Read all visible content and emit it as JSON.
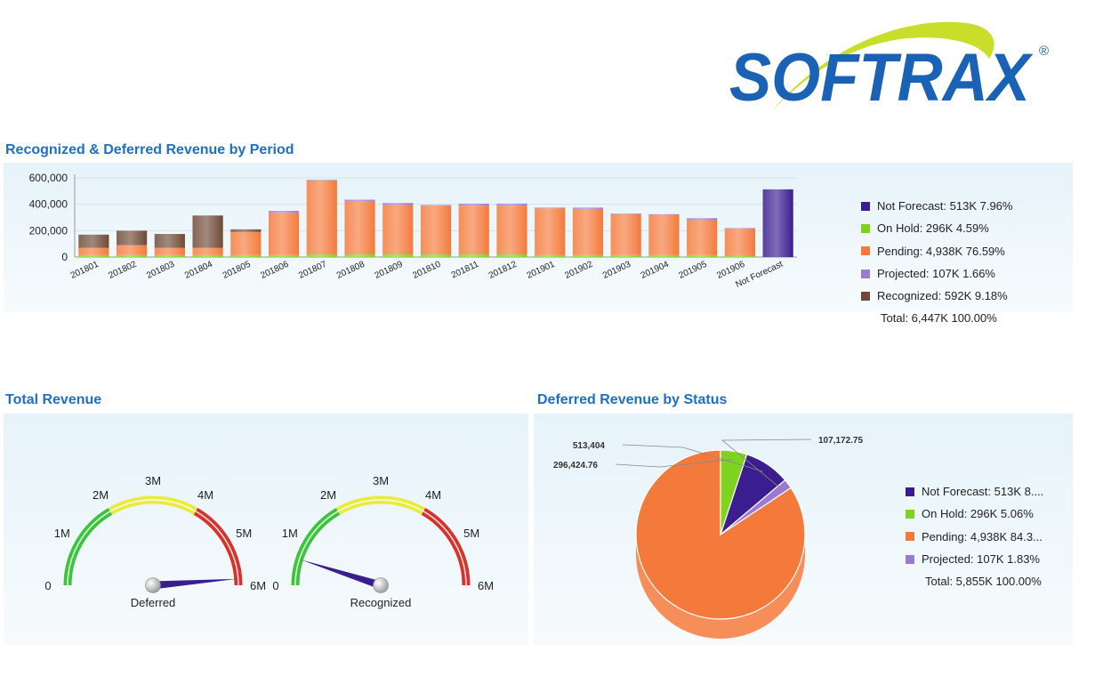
{
  "logo": {
    "text": "SOFTRAX",
    "registered": "®"
  },
  "colors": {
    "title": "#1f6fc5",
    "not_forecast": "#3b1d8f",
    "on_hold": "#7ed321",
    "pending": "#f47a3c",
    "projected": "#9b7ad0",
    "recognized": "#6e4a36"
  },
  "chart_data": [
    {
      "type": "bar",
      "title": "Recognized & Deferred Revenue by Period",
      "stacked": true,
      "categories": [
        "201801",
        "201802",
        "201803",
        "201804",
        "201805",
        "201806",
        "201807",
        "201808",
        "201809",
        "201810",
        "201811",
        "201812",
        "201901",
        "201902",
        "201903",
        "201904",
        "201905",
        "201906",
        "Not Forecast"
      ],
      "yticks": [
        "600,000",
        "400,000",
        "200,000",
        "0"
      ],
      "ylim": [
        0,
        620000
      ],
      "grid": true,
      "series": [
        {
          "name": "On Hold",
          "key": "on_hold",
          "values": [
            15000,
            15000,
            15000,
            15000,
            15000,
            15000,
            20000,
            20000,
            20000,
            20000,
            20000,
            20000,
            15000,
            15000,
            15000,
            15000,
            15000,
            10000,
            0
          ]
        },
        {
          "name": "Pending",
          "key": "pending",
          "values": [
            55000,
            75000,
            55000,
            55000,
            175000,
            320000,
            560000,
            400000,
            375000,
            370000,
            370000,
            370000,
            355000,
            350000,
            310000,
            305000,
            265000,
            205000,
            0
          ]
        },
        {
          "name": "Projected",
          "key": "projected",
          "values": [
            0,
            0,
            0,
            0,
            0,
            15000,
            5000,
            15000,
            15000,
            5000,
            15000,
            15000,
            5000,
            10000,
            5000,
            5000,
            15000,
            5000,
            0
          ]
        },
        {
          "name": "Recognized",
          "key": "recognized",
          "values": [
            100000,
            110000,
            105000,
            245000,
            20000,
            0,
            0,
            0,
            0,
            0,
            0,
            0,
            0,
            0,
            0,
            0,
            0,
            0,
            0
          ]
        },
        {
          "name": "Not Forecast",
          "key": "not_forecast",
          "values": [
            0,
            0,
            0,
            0,
            0,
            0,
            0,
            0,
            0,
            0,
            0,
            0,
            0,
            0,
            0,
            0,
            0,
            0,
            513000
          ]
        }
      ],
      "legend_position": "right",
      "legend": [
        {
          "key": "not_forecast",
          "label": "Not Forecast: 513K 7.96%"
        },
        {
          "key": "on_hold",
          "label": "On Hold: 296K 4.59%"
        },
        {
          "key": "pending",
          "label": "Pending: 4,938K 76.59%"
        },
        {
          "key": "projected",
          "label": "Projected: 107K 1.66%"
        },
        {
          "key": "recognized",
          "label": "Recognized: 592K 9.18%"
        }
      ],
      "total_label": "Total: 6,447K 100.00%"
    },
    {
      "type": "gauge",
      "title": "Total Revenue",
      "tick_labels": [
        "0",
        "1M",
        "2M",
        "3M",
        "4M",
        "5M",
        "6M"
      ],
      "range": [
        0,
        6000000
      ],
      "bands": [
        {
          "from": 0,
          "to": 2000000,
          "color": "#3cc43c"
        },
        {
          "from": 2000000,
          "to": 4000000,
          "color": "#e8ec3c"
        },
        {
          "from": 4000000,
          "to": 6000000,
          "color": "#d8302a"
        }
      ],
      "gauges": [
        {
          "label": "Deferred",
          "value": 5855000
        },
        {
          "label": "Recognized",
          "value": 592000
        }
      ]
    },
    {
      "type": "pie",
      "title": "Deferred Revenue by Status",
      "slices": [
        {
          "key": "pending",
          "value": 4938000
        },
        {
          "key": "on_hold",
          "value": 296424.76,
          "label": "296,424.76"
        },
        {
          "key": "not_forecast",
          "value": 513404,
          "label": "513,404"
        },
        {
          "key": "projected",
          "value": 107172.75,
          "label": "107,172.75"
        }
      ],
      "legend_position": "right",
      "legend": [
        {
          "key": "not_forecast",
          "label": "Not Forecast: 513K 8...."
        },
        {
          "key": "on_hold",
          "label": "On Hold: 296K 5.06%"
        },
        {
          "key": "pending",
          "label": "Pending: 4,938K 84.3..."
        },
        {
          "key": "projected",
          "label": "Projected: 107K 1.83%"
        }
      ],
      "total_label": "Total: 5,855K 100.00%"
    }
  ]
}
